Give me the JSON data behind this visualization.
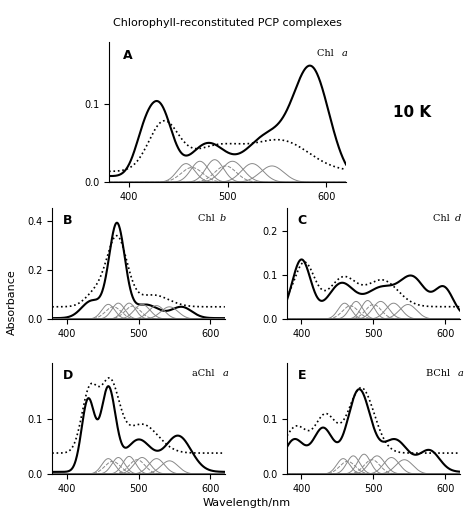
{
  "title": "Chlorophyll-reconstituted PCP complexes",
  "xlabel": "Wavelength/nm",
  "ylabel": "Absorbance",
  "x_range": [
    380,
    620
  ],
  "panels": [
    {
      "label": "A",
      "chl_label_normal": "Chl ",
      "chl_label_italic": "a",
      "ylim": [
        0,
        0.18
      ],
      "yticks": [
        0.0,
        0.1
      ],
      "annotation_10K": true
    },
    {
      "label": "B",
      "chl_label_normal": "Chl ",
      "chl_label_italic": "b",
      "ylim": [
        0,
        0.45
      ],
      "yticks": [
        0.0,
        0.2,
        0.4
      ],
      "annotation_10K": false
    },
    {
      "label": "C",
      "chl_label_normal": "Chl ",
      "chl_label_italic": "d",
      "ylim": [
        0,
        0.25
      ],
      "yticks": [
        0.0,
        0.1,
        0.2
      ],
      "annotation_10K": false
    },
    {
      "label": "D",
      "chl_label_normal": "aChl ",
      "chl_label_italic": "a",
      "ylim": [
        0,
        0.2
      ],
      "yticks": [
        0.0,
        0.1
      ],
      "annotation_10K": false
    },
    {
      "label": "E",
      "chl_label_normal": "BChl ",
      "chl_label_italic": "a",
      "ylim": [
        0,
        0.2
      ],
      "yticks": [
        0.0,
        0.1
      ],
      "annotation_10K": false
    }
  ]
}
